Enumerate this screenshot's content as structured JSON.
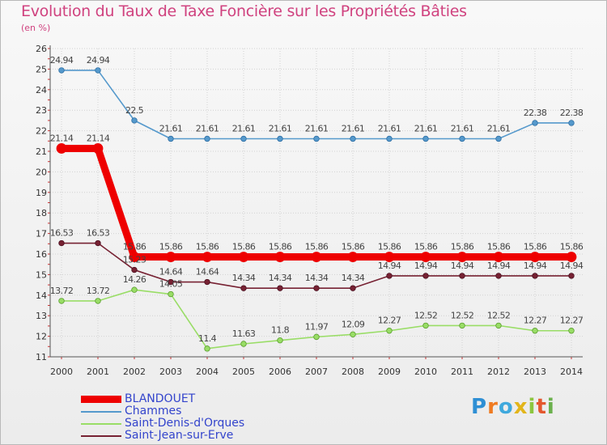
{
  "chart_data": {
    "type": "line",
    "title": "Evolution du Taux de Taxe Foncière sur les Propriétés Bâties",
    "ylabel": "(en %)",
    "xlabel": "",
    "ylim": [
      11,
      26
    ],
    "yticks": [
      11,
      12,
      13,
      14,
      15,
      16,
      17,
      18,
      19,
      20,
      21,
      22,
      23,
      24,
      25,
      26
    ],
    "categories": [
      "2000",
      "2001",
      "2002",
      "2003",
      "2004",
      "2005",
      "2006",
      "2007",
      "2008",
      "2009",
      "2010",
      "2011",
      "2012",
      "2013",
      "2014"
    ],
    "series": [
      {
        "name": "BLANDOUET",
        "color": "#ee0000",
        "values": [
          21.14,
          21.14,
          15.86,
          15.86,
          15.86,
          15.86,
          15.86,
          15.86,
          15.86,
          15.86,
          15.86,
          15.86,
          15.86,
          15.86,
          15.86
        ],
        "labels": [
          "21.14",
          "21.14",
          "15.86",
          "15.86",
          "15.86",
          "15.86",
          "15.86",
          "15.86",
          "15.86",
          "15.86",
          "15.86",
          "15.86",
          "15.86",
          "15.86",
          "15.86"
        ]
      },
      {
        "name": "Chammes",
        "color": "#5599cc",
        "values": [
          24.94,
          24.94,
          22.5,
          21.61,
          21.61,
          21.61,
          21.61,
          21.61,
          21.61,
          21.61,
          21.61,
          21.61,
          21.61,
          22.38,
          22.38
        ],
        "labels": [
          "24.94",
          "24.94",
          "22.5",
          "21.61",
          "21.61",
          "21.61",
          "21.61",
          "21.61",
          "21.61",
          "21.61",
          "21.61",
          "21.61",
          "21.61",
          "22.38",
          "22.38"
        ]
      },
      {
        "name": "Saint-Denis-d'Orques",
        "color": "#99dd66",
        "values": [
          13.72,
          13.72,
          14.26,
          14.05,
          11.4,
          11.63,
          11.8,
          11.97,
          12.09,
          12.27,
          12.52,
          12.52,
          12.52,
          12.27,
          12.27
        ],
        "labels": [
          "13.72",
          "13.72",
          "14.26",
          "14.05",
          "11.4",
          "11.63",
          "11.8",
          "11.97",
          "12.09",
          "12.27",
          "12.52",
          "12.52",
          "12.52",
          "12.27",
          "12.27"
        ]
      },
      {
        "name": "Saint-Jean-sur-Erve",
        "color": "#772233",
        "values": [
          16.53,
          16.53,
          15.23,
          14.64,
          14.64,
          14.34,
          14.34,
          14.34,
          14.34,
          14.94,
          14.94,
          14.94,
          14.94,
          14.94,
          14.94
        ],
        "labels": [
          "16.53",
          "16.53",
          "15.23",
          "14.64",
          "14.64",
          "14.34",
          "14.34",
          "14.34",
          "14.34",
          "14.94",
          "14.94",
          "14.94",
          "14.94",
          "14.94",
          "14.94"
        ]
      }
    ]
  },
  "brand": {
    "letters": [
      "P",
      "r",
      "o",
      "x",
      "i",
      "t",
      "i"
    ]
  }
}
